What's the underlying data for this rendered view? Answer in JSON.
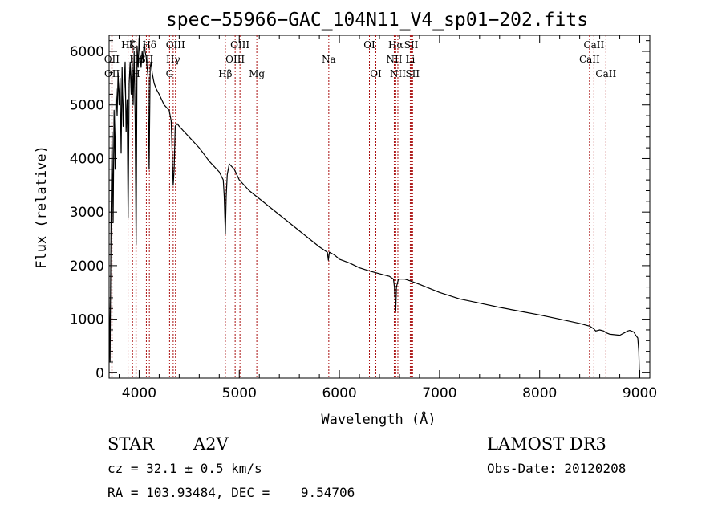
{
  "chart_data": {
    "type": "line",
    "title": "spec−55966−GAC_104N11_V4_sp01−202.fits",
    "xlabel": "Wavelength (Å)",
    "ylabel": "Flux (relative)",
    "xlim": [
      3700,
      9100
    ],
    "ylim": [
      -100,
      6300
    ],
    "xticks": [
      4000,
      5000,
      6000,
      7000,
      8000,
      9000
    ],
    "xtick_labels": [
      "4000",
      "5000",
      "6000",
      "7000",
      "8000",
      "9000"
    ],
    "yticks": [
      0,
      1000,
      2000,
      3000,
      4000,
      5000,
      6000
    ],
    "ytick_labels": [
      "0",
      "1000",
      "2000",
      "3000",
      "4000",
      "5000",
      "6000"
    ],
    "grid": false,
    "series": [
      {
        "name": "spectrum",
        "x": [
          3700,
          3710,
          3720,
          3730,
          3740,
          3750,
          3760,
          3770,
          3780,
          3790,
          3800,
          3810,
          3820,
          3830,
          3840,
          3850,
          3860,
          3870,
          3880,
          3890,
          3900,
          3910,
          3920,
          3930,
          3940,
          3950,
          3960,
          3970,
          3980,
          3990,
          4000,
          4010,
          4020,
          4030,
          4040,
          4050,
          4060,
          4070,
          4080,
          4090,
          4100,
          4110,
          4120,
          4130,
          4140,
          4150,
          4170,
          4200,
          4250,
          4300,
          4320,
          4340,
          4350,
          4360,
          4380,
          4400,
          4450,
          4500,
          4600,
          4700,
          4800,
          4840,
          4850,
          4861,
          4870,
          4880,
          4900,
          4950,
          5000,
          5100,
          5200,
          5300,
          5400,
          5500,
          5600,
          5700,
          5800,
          5880,
          5890,
          5900,
          5950,
          6000,
          6100,
          6200,
          6300,
          6400,
          6500,
          6540,
          6550,
          6563,
          6570,
          6590,
          6650,
          6700,
          6800,
          7000,
          7200,
          7400,
          7600,
          7800,
          8000,
          8200,
          8400,
          8500,
          8540,
          8560,
          8600,
          8640,
          8660,
          8700,
          8800,
          8850,
          8880,
          8900,
          8940,
          8960,
          8980,
          8990,
          8995
        ],
        "y": [
          1400,
          200,
          3000,
          4500,
          2800,
          4900,
          3800,
          5300,
          4800,
          5600,
          5000,
          5500,
          4100,
          5700,
          4600,
          5300,
          5800,
          4500,
          5100,
          2900,
          5400,
          5800,
          5200,
          5900,
          5000,
          6000,
          4700,
          2400,
          6100,
          5700,
          6250,
          5900,
          5700,
          6000,
          5800,
          6200,
          6000,
          5900,
          5700,
          5500,
          3800,
          5700,
          5800,
          5600,
          5500,
          5400,
          5300,
          5200,
          5000,
          4900,
          4700,
          3500,
          3800,
          4600,
          4650,
          4600,
          4500,
          4400,
          4200,
          3950,
          3750,
          3600,
          3300,
          2600,
          3300,
          3700,
          3900,
          3800,
          3600,
          3400,
          3250,
          3100,
          2950,
          2800,
          2650,
          2500,
          2350,
          2250,
          2100,
          2250,
          2200,
          2120,
          2050,
          1960,
          1900,
          1850,
          1800,
          1750,
          1600,
          1150,
          1600,
          1750,
          1750,
          1720,
          1650,
          1500,
          1380,
          1300,
          1220,
          1150,
          1080,
          1000,
          920,
          870,
          820,
          780,
          800,
          780,
          750,
          720,
          700,
          750,
          780,
          790,
          760,
          700,
          650,
          400,
          50
        ]
      }
    ],
    "line_color": "#000000",
    "marker_color": "#aa1111",
    "spectral_lines": [
      {
        "label": "Hζ",
        "wavelength": 3889,
        "row": 1
      },
      {
        "label": "OII",
        "wavelength": 3727,
        "row": 2
      },
      {
        "label": "OII",
        "wavelength": 3729,
        "row": 3
      },
      {
        "label": "K",
        "wavelength": 3934,
        "row": 1
      },
      {
        "label": "Hε",
        "wavelength": 3970,
        "row": 2
      },
      {
        "label": "H",
        "wavelength": 3968,
        "row": 3
      },
      {
        "label": "SII",
        "wavelength": 4072,
        "row": 2
      },
      {
        "label": "Hδ",
        "wavelength": 4102,
        "row": 1
      },
      {
        "label": "OIII",
        "wavelength": 4363,
        "row": 1
      },
      {
        "label": "Hγ",
        "wavelength": 4340,
        "row": 2
      },
      {
        "label": "G",
        "wavelength": 4304,
        "row": 3
      },
      {
        "label": "Hβ",
        "wavelength": 4861,
        "row": 3
      },
      {
        "label": "OIII",
        "wavelength": 5007,
        "row": 1
      },
      {
        "label": "OIII",
        "wavelength": 4959,
        "row": 2
      },
      {
        "label": "Mg",
        "wavelength": 5175,
        "row": 3
      },
      {
        "label": "Na",
        "wavelength": 5894,
        "row": 2
      },
      {
        "label": "OI",
        "wavelength": 6300,
        "row": 1
      },
      {
        "label": "OI",
        "wavelength": 6364,
        "row": 3
      },
      {
        "label": "Hα",
        "wavelength": 6563,
        "row": 1
      },
      {
        "label": "NII",
        "wavelength": 6548,
        "row": 2
      },
      {
        "label": "NII",
        "wavelength": 6584,
        "row": 3
      },
      {
        "label": "SII",
        "wavelength": 6717,
        "row": 1
      },
      {
        "label": "Li",
        "wavelength": 6708,
        "row": 2
      },
      {
        "label": "SII",
        "wavelength": 6731,
        "row": 3
      },
      {
        "label": "CaII",
        "wavelength": 8542,
        "row": 1
      },
      {
        "label": "CaII",
        "wavelength": 8498,
        "row": 2
      },
      {
        "label": "CaII",
        "wavelength": 8662,
        "row": 3
      }
    ]
  },
  "info": {
    "class_label": "STAR",
    "subclass": "A2V",
    "survey": "LAMOST DR3",
    "cz": "cz = 32.1 ± 0.5 km/s",
    "obs_date": "Obs-Date: 20120208",
    "coords": "RA = 103.93484, DEC =    9.54706"
  }
}
